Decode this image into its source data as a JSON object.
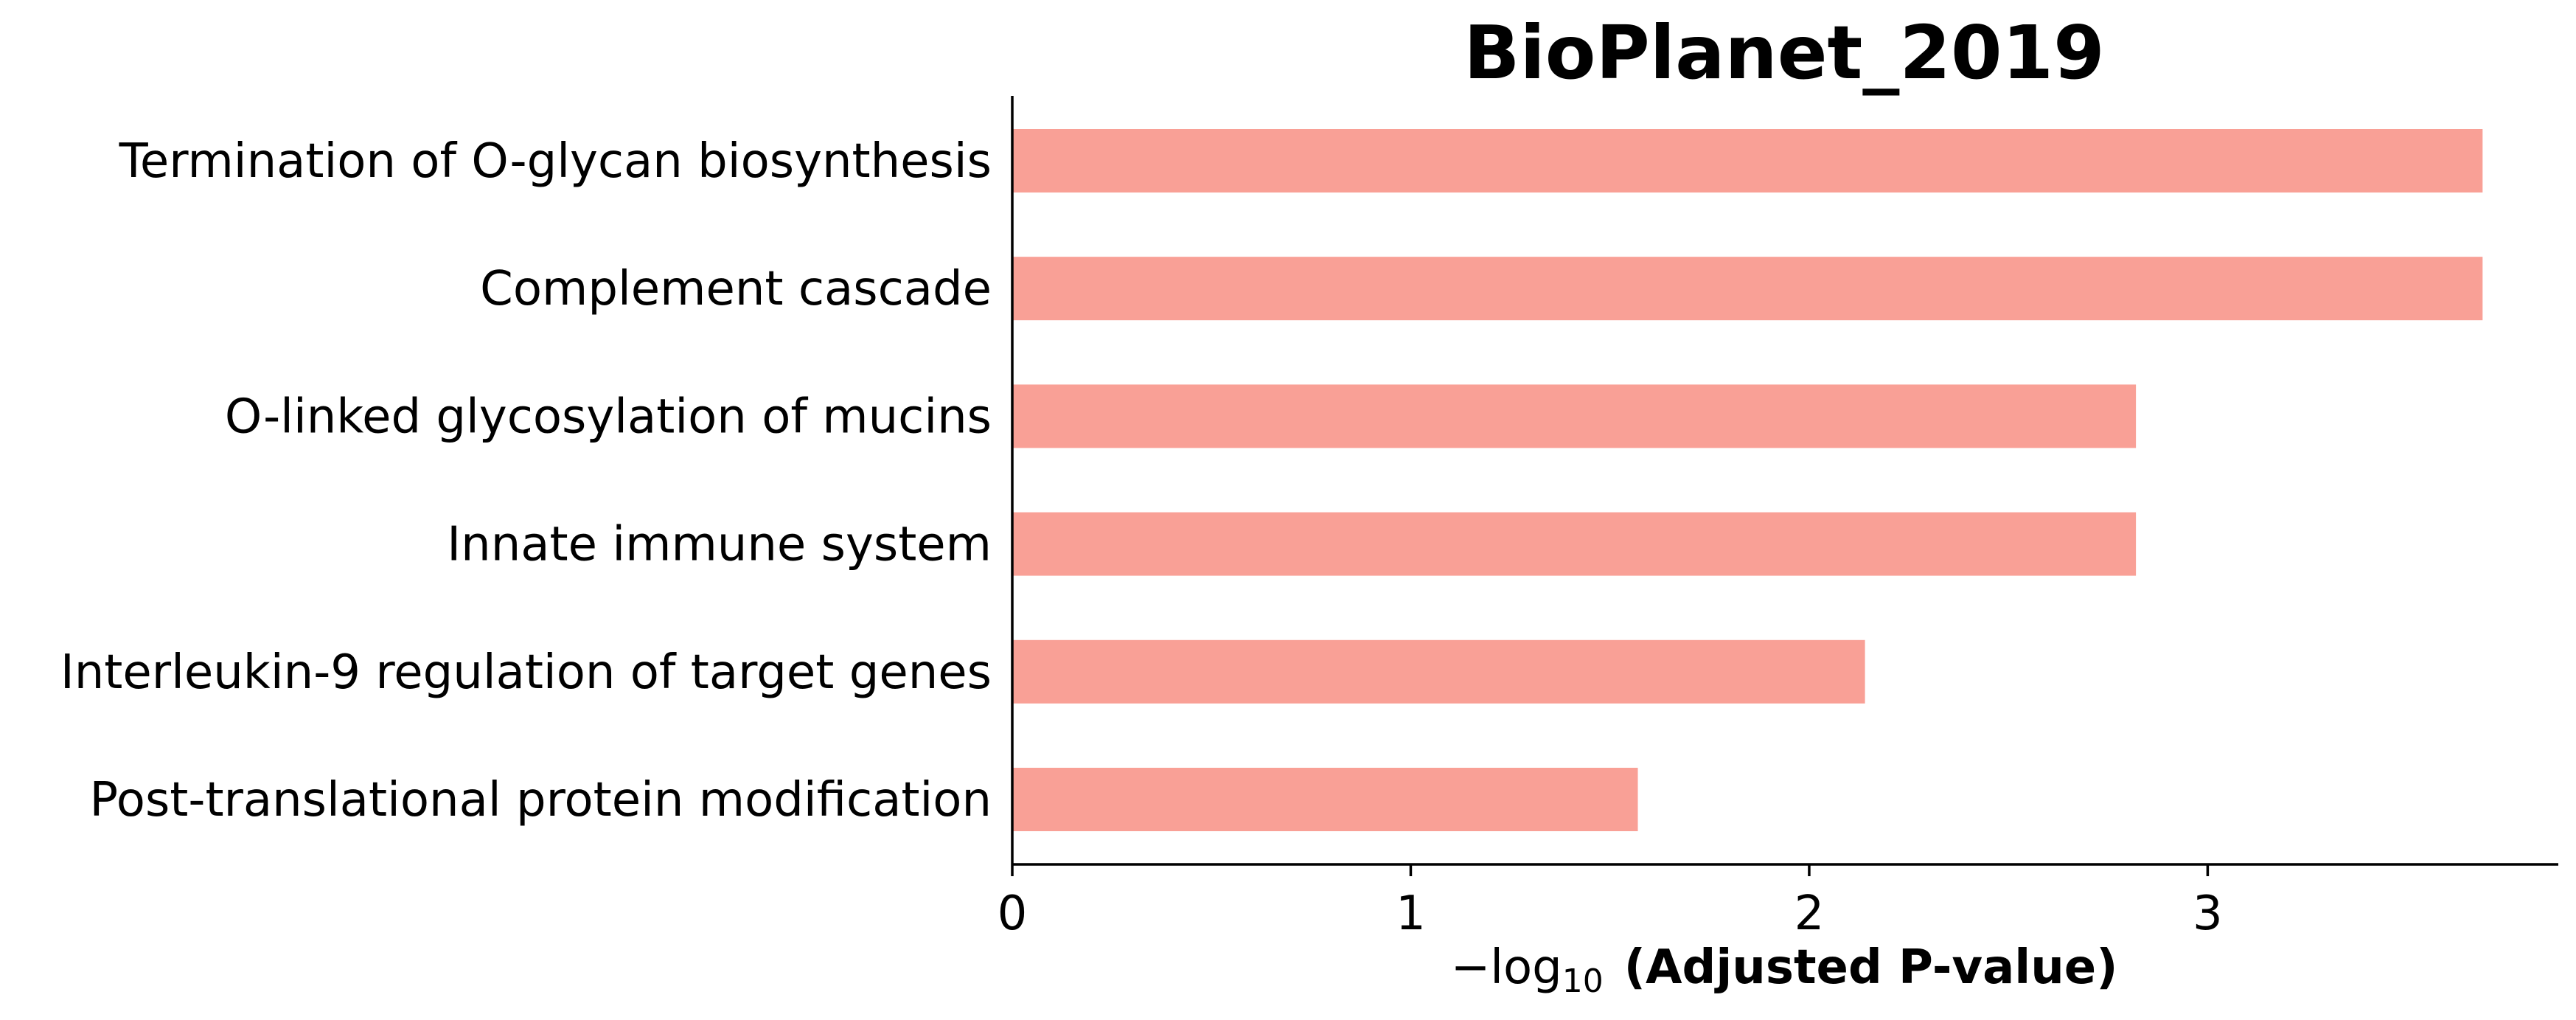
{
  "chart_data": {
    "type": "bar",
    "orientation": "horizontal",
    "title": "BioPlanet_2019",
    "categories": [
      "Termination of O-glycan biosynthesis",
      "Complement cascade",
      "O-linked glycosylation of mucins",
      "Innate immune system",
      "Interleukin-9 regulation of target genes",
      "Post-translational protein modification"
    ],
    "values": [
      3.69,
      3.69,
      2.82,
      2.82,
      2.14,
      1.57
    ],
    "xlabel_prefix": "−log",
    "xlabel_subscript": "10",
    "xlabel_main": "(Adjusted P-value)",
    "ylabel": "",
    "xlim": [
      0,
      3.88
    ],
    "xticks": [
      0,
      1,
      2,
      3
    ],
    "bar_color": "#f9a096",
    "grid": false,
    "legend": "none"
  }
}
